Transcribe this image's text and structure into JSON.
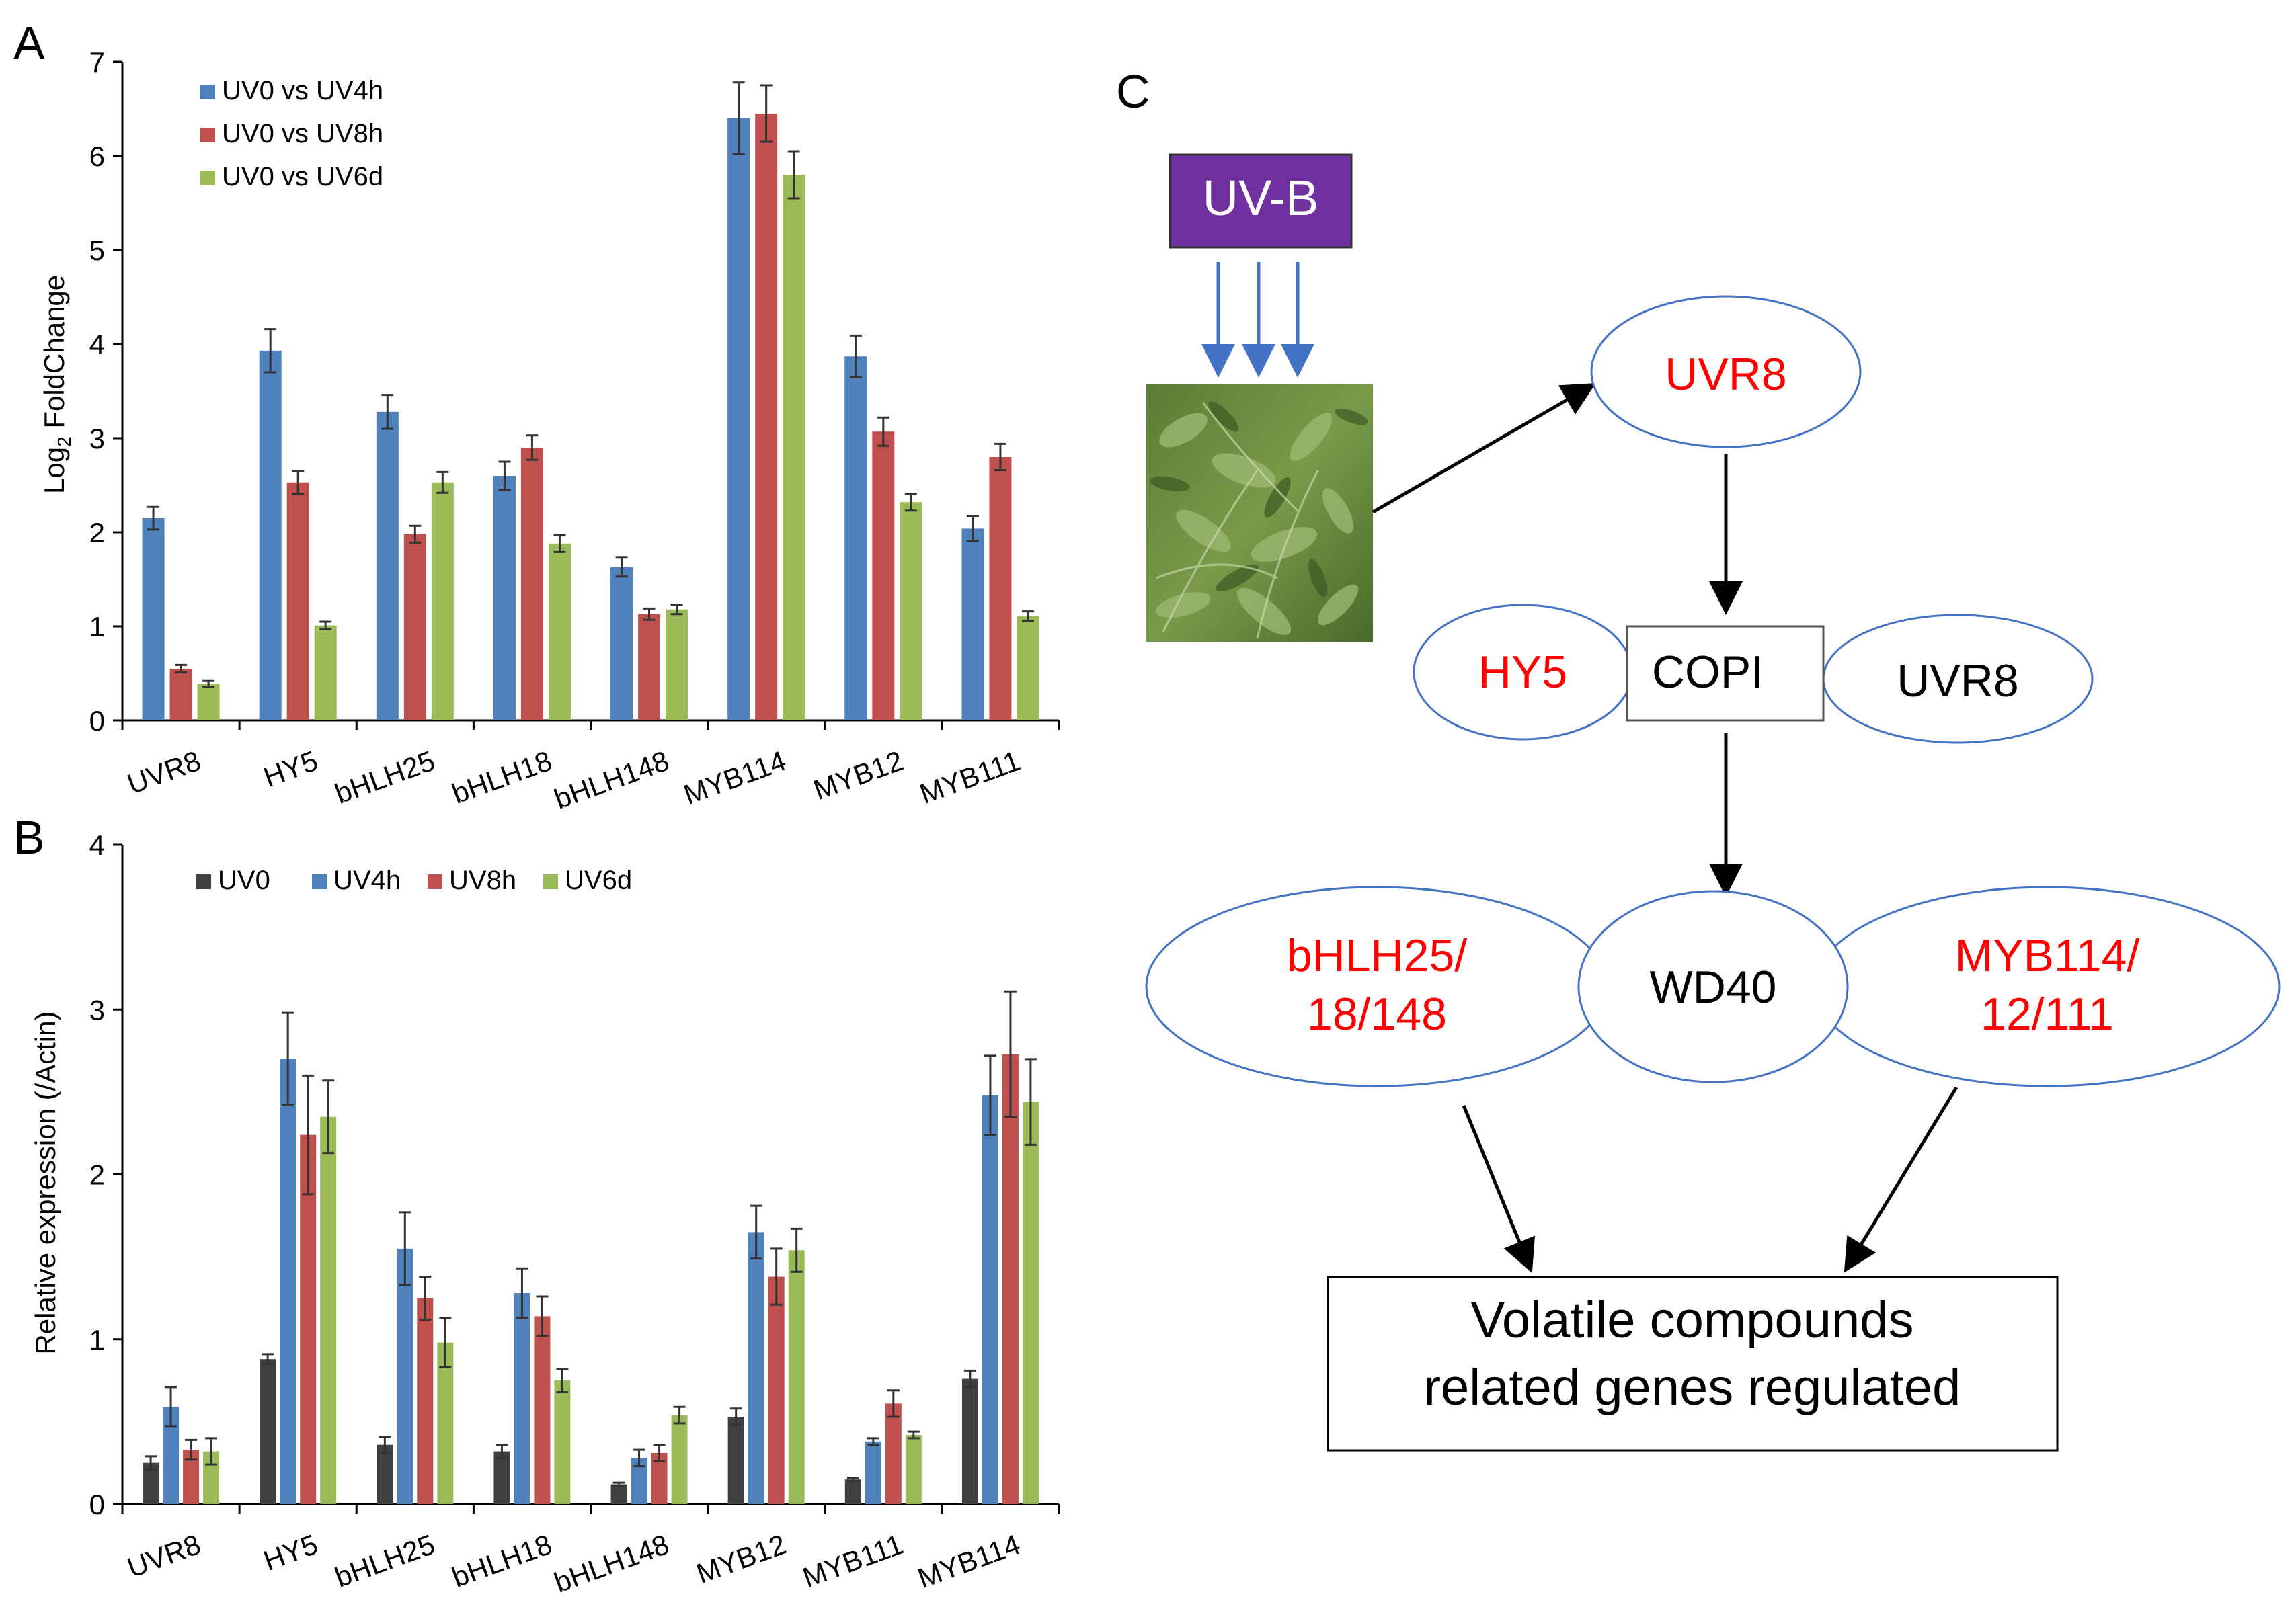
{
  "panels": {
    "a": {
      "label": "A"
    },
    "b": {
      "label": "B"
    },
    "c": {
      "label": "C"
    }
  },
  "chart_data": [
    {
      "id": "A",
      "type": "bar",
      "ylabel_main": "Log",
      "ylabel_sub": "2",
      "ylabel_rest": " FoldChange",
      "xlabel": "",
      "ylim": [
        0,
        7
      ],
      "yticks": [
        0,
        1,
        2,
        3,
        4,
        5,
        6,
        7
      ],
      "categories": [
        "UVR8",
        "HY5",
        "bHLH25",
        "bHLH18",
        "bHLH148",
        "MYB114",
        "MYB12",
        "MYB111"
      ],
      "series": [
        {
          "name": "UV0 vs UV4h",
          "color": "#4f81bd",
          "values": [
            2.15,
            3.93,
            3.28,
            2.6,
            1.63,
            6.4,
            3.87,
            2.04
          ],
          "errors": [
            0.12,
            0.23,
            0.18,
            0.15,
            0.1,
            0.38,
            0.22,
            0.13
          ]
        },
        {
          "name": "UV0 vs UV8h",
          "color": "#c0504d",
          "values": [
            0.55,
            2.53,
            1.98,
            2.9,
            1.13,
            6.45,
            3.07,
            2.8
          ],
          "errors": [
            0.04,
            0.12,
            0.09,
            0.13,
            0.06,
            0.3,
            0.15,
            0.14
          ]
        },
        {
          "name": "UV0 vs UV6d",
          "color": "#9bbb59",
          "values": [
            0.39,
            1.01,
            2.53,
            1.88,
            1.18,
            5.8,
            2.32,
            1.11
          ],
          "errors": [
            0.03,
            0.04,
            0.11,
            0.09,
            0.05,
            0.25,
            0.09,
            0.05
          ]
        }
      ]
    },
    {
      "id": "B",
      "type": "bar",
      "ylabel": "Relative expression (/Actin)",
      "xlabel": "",
      "ylim": [
        0,
        4
      ],
      "yticks": [
        0,
        1,
        2,
        3,
        4
      ],
      "categories": [
        "UVR8",
        "HY5",
        "bHLH25",
        "bHLH18",
        "bHLH148",
        "MYB12",
        "MYB111",
        "MYB114"
      ],
      "series": [
        {
          "name": "UV0",
          "color": "#404040",
          "values": [
            0.25,
            0.88,
            0.36,
            0.32,
            0.12,
            0.53,
            0.15,
            0.76
          ],
          "errors": [
            0.04,
            0.03,
            0.05,
            0.04,
            0.01,
            0.05,
            0.01,
            0.05
          ]
        },
        {
          "name": "UV4h",
          "color": "#4f81bd",
          "values": [
            0.59,
            2.7,
            1.55,
            1.28,
            0.28,
            1.65,
            0.38,
            2.48
          ],
          "errors": [
            0.12,
            0.28,
            0.22,
            0.15,
            0.05,
            0.16,
            0.02,
            0.24
          ]
        },
        {
          "name": "UV8h",
          "color": "#c0504d",
          "values": [
            0.33,
            2.24,
            1.25,
            1.14,
            0.31,
            1.38,
            0.61,
            2.73
          ],
          "errors": [
            0.06,
            0.36,
            0.13,
            0.12,
            0.05,
            0.17,
            0.08,
            0.38
          ]
        },
        {
          "name": "UV6d",
          "color": "#9bbb59",
          "values": [
            0.32,
            2.35,
            0.98,
            0.75,
            0.54,
            1.54,
            0.42,
            2.44
          ],
          "errors": [
            0.08,
            0.22,
            0.15,
            0.07,
            0.05,
            0.13,
            0.02,
            0.26
          ]
        }
      ]
    }
  ],
  "diagram": {
    "uvb_label": "UV-B",
    "uvb_color": "#7030a0",
    "uvr8_top": "UVR8",
    "hy5": "HY5",
    "copi": "COPI",
    "uvr8_right": "UVR8",
    "bhlh_line1": "bHLH25/",
    "bhlh_line2": "18/148",
    "wd40": "WD40",
    "myb_line1": "MYB114/",
    "myb_line2": "12/111",
    "result_line1": "Volatile compounds",
    "result_line2": "related genes regulated",
    "highlight_color": "#ff0000",
    "ellipse_color": "#4472c4",
    "arrow_color_uv": "#4472c4"
  }
}
